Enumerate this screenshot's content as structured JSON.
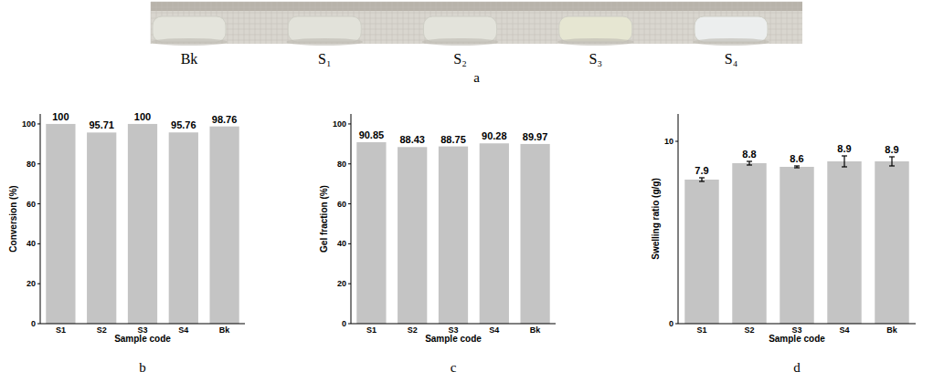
{
  "photo": {
    "panel_label": "a",
    "labels": [
      "Bk",
      "S₁",
      "S₂",
      "S₃",
      "S₄"
    ]
  },
  "chart_data": [
    {
      "type": "bar",
      "panel_label": "b",
      "y_label": "Conversion (%)",
      "x_label": "Sample code",
      "categories": [
        "S1",
        "S2",
        "S3",
        "S4",
        "Bk"
      ],
      "values": [
        100,
        95.71,
        100,
        95.76,
        98.76
      ],
      "color": "#c4c4c4",
      "ylim": [
        0,
        105
      ],
      "yticks": [
        0,
        20,
        40,
        60,
        80,
        100
      ],
      "grid": false,
      "data_labels": true
    },
    {
      "type": "bar",
      "panel_label": "c",
      "y_label": "Gel fraction (%)",
      "x_label": "Sample code",
      "categories": [
        "S1",
        "S2",
        "S3",
        "S4",
        "Bk"
      ],
      "values": [
        90.85,
        88.43,
        88.75,
        90.28,
        89.97
      ],
      "color": "#c4c4c4",
      "ylim": [
        0,
        105
      ],
      "yticks": [
        0,
        20,
        40,
        60,
        80,
        100
      ],
      "grid": false,
      "data_labels": true
    },
    {
      "type": "bar",
      "panel_label": "d",
      "y_label": "Swelling ratio (g/g)",
      "x_label": "Sample code",
      "categories": [
        "S1",
        "S2",
        "S3",
        "S4",
        "Bk"
      ],
      "values": [
        7.9,
        8.8,
        8.6,
        8.9,
        8.9
      ],
      "errors": [
        0.1,
        0.1,
        0.05,
        0.3,
        0.25
      ],
      "color": "#c4c4c4",
      "ylim": [
        0,
        11.5
      ],
      "yticks": [
        0,
        10
      ],
      "grid": false,
      "data_labels": true
    }
  ]
}
